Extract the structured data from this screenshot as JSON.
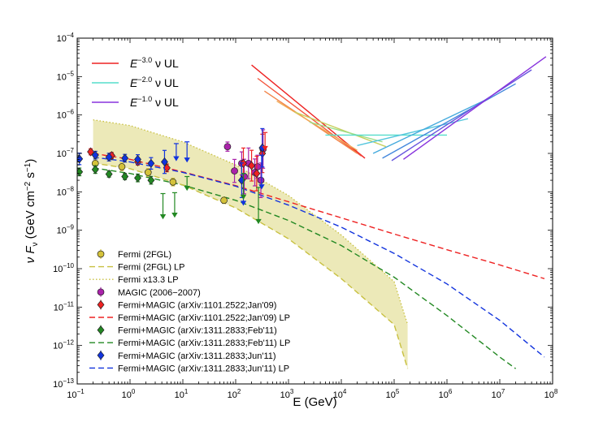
{
  "chart_data": {
    "type": "scatter",
    "xlabel_parts": [
      "E (GeV)"
    ],
    "ylabel_parts": [
      "ν F",
      "ν",
      " (GeV cm",
      "−2",
      " s",
      "−1",
      ")"
    ],
    "xlim": [
      0.1,
      100000000
    ],
    "ylim": [
      1e-13,
      0.0001
    ],
    "x_scale": "log",
    "y_scale": "log",
    "x_ticks": [
      {
        "base": "10",
        "exp": "−1",
        "value": 0.1
      },
      {
        "base": "10",
        "exp": "0",
        "value": 1
      },
      {
        "base": "10",
        "exp": "1",
        "value": 10
      },
      {
        "base": "10",
        "exp": "2",
        "value": 100
      },
      {
        "base": "10",
        "exp": "3",
        "value": 1000
      },
      {
        "base": "10",
        "exp": "4",
        "value": 10000
      },
      {
        "base": "10",
        "exp": "5",
        "value": 100000
      },
      {
        "base": "10",
        "exp": "6",
        "value": 1000000
      },
      {
        "base": "10",
        "exp": "7",
        "value": 10000000
      },
      {
        "base": "10",
        "exp": "8",
        "value": 100000000
      }
    ],
    "y_ticks": [
      {
        "base": "10",
        "exp": "−13",
        "value": 1e-13
      },
      {
        "base": "10",
        "exp": "−12",
        "value": 1e-12
      },
      {
        "base": "10",
        "exp": "−11",
        "value": 1e-11
      },
      {
        "base": "10",
        "exp": "−10",
        "value": 1e-10
      },
      {
        "base": "10",
        "exp": "−9",
        "value": 1e-09
      },
      {
        "base": "10",
        "exp": "−8",
        "value": 1e-08
      },
      {
        "base": "10",
        "exp": "−7",
        "value": 1e-07
      },
      {
        "base": "10",
        "exp": "−6",
        "value": 1e-06
      },
      {
        "base": "10",
        "exp": "−5",
        "value": 1e-05
      },
      {
        "base": "10",
        "exp": "−4",
        "value": 0.0001
      }
    ],
    "nu_legend": [
      {
        "prefix": "E",
        "exp": "−3.0",
        "suffix": " ν UL",
        "color": "#ee2222"
      },
      {
        "prefix": "E",
        "exp": "−2.0",
        "suffix": " ν UL",
        "color": "#55ddcc"
      },
      {
        "prefix": "E",
        "exp": "−1.0",
        "suffix": " ν UL",
        "color": "#8833dd"
      }
    ],
    "legend": [
      {
        "label": "Fermi (2FGL)",
        "kind": "marker",
        "shape": "circle",
        "color": "#d4c23a"
      },
      {
        "label": "Fermi (2FGL) LP",
        "kind": "line",
        "dash": "7,4",
        "color": "#c8c040"
      },
      {
        "label": "Fermi x13.3 LP",
        "kind": "line",
        "dash": "1.5,2.5",
        "color": "#c8c040"
      },
      {
        "label": "MAGIC (2006−2007)",
        "kind": "marker",
        "shape": "circle",
        "color": "#aa22aa"
      },
      {
        "label": "Fermi+MAGIC (arXiv:1101.2522;Jan'09)",
        "kind": "marker",
        "shape": "diamond",
        "color": "#ee2222"
      },
      {
        "label": "Fermi+MAGIC (arXiv:1101.2522;Jan'09) LP",
        "kind": "line",
        "dash": "7,4",
        "color": "#ee2222"
      },
      {
        "label": "Fermi+MAGIC (arXiv:1311.2833;Feb'11)",
        "kind": "marker",
        "shape": "diamond",
        "color": "#228822"
      },
      {
        "label": "Fermi+MAGIC (arXiv:1311.2833;Feb'11) LP",
        "kind": "line",
        "dash": "7,4",
        "color": "#228822"
      },
      {
        "label": "Fermi+MAGIC (arXiv:1311.2833;Jun'11)",
        "kind": "marker",
        "shape": "diamond",
        "color": "#1133dd"
      },
      {
        "label": "Fermi+MAGIC (arXiv:1311.2833;Jun'11) LP",
        "kind": "line",
        "dash": "7,4",
        "color": "#1133dd"
      }
    ],
    "lp_curves": [
      {
        "name": "Jan'09 LP",
        "color": "#ee2222",
        "dash": "7,4",
        "x": [
          0.2,
          1,
          10,
          100,
          1000,
          10000,
          100000,
          1000000,
          10000000,
          70000000
        ],
        "y": [
          1e-07,
          7e-08,
          3.3e-08,
          1.45e-08,
          5.5e-09,
          2.1e-09,
          8e-10,
          3.1e-10,
          1.25e-10,
          5.5e-11
        ]
      },
      {
        "name": "Jun'11 LP",
        "color": "#1133dd",
        "dash": "7,4",
        "x": [
          0.2,
          1,
          10,
          100,
          1000,
          10000,
          100000,
          1000000,
          10000000,
          70000000
        ],
        "y": [
          8e-08,
          6e-08,
          3.2e-08,
          1.4e-08,
          4.5e-09,
          1.2e-09,
          2.5e-10,
          4e-11,
          4.5e-12,
          5e-13
        ]
      },
      {
        "name": "Feb'11 LP",
        "color": "#228822",
        "dash": "7,4",
        "x": [
          0.2,
          1,
          10,
          100,
          1000,
          10000,
          100000,
          1000000,
          10000000,
          20000000
        ],
        "y": [
          4.2e-08,
          3e-08,
          1.5e-08,
          6e-09,
          1.8e-09,
          4e-10,
          6e-11,
          6e-12,
          5e-13,
          2.5e-13
        ]
      },
      {
        "name": "Fermi (2FGL) LP",
        "color": "#c8c040",
        "dash": "7,4",
        "x": [
          0.2,
          1,
          10,
          100,
          1000,
          10000,
          100000,
          180000
        ],
        "y": [
          5.6e-08,
          4e-08,
          1.5e-08,
          3.8e-09,
          6e-10,
          5.5e-11,
          3.5e-12,
          2.5e-13
        ]
      }
    ],
    "fermi_x13_band": {
      "name": "Fermi x13.3 LP",
      "color": "#c8c040",
      "fill": "#ece9b8",
      "x": [
        0.2,
        1,
        10,
        100,
        1000,
        10000,
        100000,
        180000
      ],
      "y_upper": [
        7.5e-07,
        5.3e-07,
        2e-07,
        5e-08,
        8e-09,
        7.5e-10,
        4.6e-11,
        3.5e-12
      ]
    },
    "nu_ul_lines": [
      {
        "color": "#ee2222",
        "x": [
          200,
          28000
        ],
        "y": [
          2e-05,
          7.5e-08
        ]
      },
      {
        "color": "#f4553d",
        "x": [
          260,
          24000
        ],
        "y": [
          9e-06,
          8.5e-08
        ]
      },
      {
        "color": "#f2854a",
        "x": [
          350,
          20000
        ],
        "y": [
          4.2e-06,
          1e-07
        ]
      },
      {
        "color": "#f0aa55",
        "x": [
          600,
          20000
        ],
        "y": [
          2.3e-06,
          1.2e-07
        ]
      },
      {
        "color": "#c8d060",
        "x": [
          1300,
          70000
        ],
        "y": [
          1.2e-06,
          1.5e-07
        ]
      },
      {
        "color": "#99dd88",
        "x": [
          2500,
          60000
        ],
        "y": [
          6.5e-07,
          2e-07
        ]
      },
      {
        "color": "#55ddcc",
        "x": [
          5000,
          1000000
        ],
        "y": [
          3e-07,
          3e-07
        ]
      },
      {
        "color": "#55c6dd",
        "x": [
          20000,
          2500000
        ],
        "y": [
          1.6e-07,
          8e-07
        ]
      },
      {
        "color": "#44aadd",
        "x": [
          40000,
          5500000
        ],
        "y": [
          1e-07,
          2.5e-06
        ]
      },
      {
        "color": "#4488dd",
        "x": [
          60000,
          20000000
        ],
        "y": [
          7.5e-08,
          6.5e-06
        ]
      },
      {
        "color": "#6655dd",
        "x": [
          90000,
          40000000
        ],
        "y": [
          6.5e-08,
          1.5e-05
        ]
      },
      {
        "color": "#8833dd",
        "x": [
          150000,
          75000000
        ],
        "y": [
          7e-08,
          3.3e-05
        ]
      }
    ],
    "series": [
      {
        "name": "Fermi (2FGL)",
        "marker": "circle",
        "color": "#d4c23a",
        "x": [
          0.22,
          0.7,
          2.2,
          6.5,
          60
        ],
        "y": [
          5.5e-08,
          4.5e-08,
          3.2e-08,
          1.8e-08,
          6e-09
        ],
        "err": [
          0.15,
          0.1,
          0.1,
          0.1,
          0.08
        ]
      },
      {
        "name": "MAGIC (2006−2007)",
        "marker": "circle",
        "color": "#aa22aa",
        "x": [
          70,
          95,
          130,
          145,
          175,
          230,
          260,
          300,
          330
        ],
        "y": [
          1.5e-07,
          3.5e-08,
          5.5e-08,
          2.5e-08,
          5.5e-08,
          3.2e-08,
          4.5e-08,
          2e-08,
          1.3e-07
        ],
        "err": [
          0.12,
          0.3,
          0.3,
          0.45,
          0.4,
          0.35,
          0.3,
          0.45,
          0.5
        ]
      },
      {
        "name": "Fermi+MAGIC (arXiv:1101.2522;Jan'09)",
        "marker": "diamond",
        "color": "#ee2222",
        "x": [
          0.18,
          0.45,
          1.4,
          5.0,
          140,
          200,
          250,
          320
        ],
        "y": [
          1.1e-07,
          8.8e-08,
          6e-08,
          4.2e-08,
          5.5e-08,
          4.8e-08,
          3e-08,
          1e-07
        ],
        "err": [
          0.08,
          0.08,
          0.08,
          0.1,
          0.4,
          0.4,
          0.45,
          0.5
        ]
      },
      {
        "name": "Fermi+MAGIC (arXiv:1311.2833;Feb'11)",
        "marker": "diamond",
        "color": "#228822",
        "x": [
          0.11,
          0.22,
          0.4,
          0.8,
          1.4,
          2.5
        ],
        "y": [
          3.3e-08,
          3.8e-08,
          2.9e-08,
          2.5e-08,
          2.3e-08,
          2e-08
        ],
        "err": [
          0.1,
          0.1,
          0.08,
          0.08,
          0.1,
          0.1
        ]
      },
      {
        "name": "Fermi+MAGIC (arXiv:1311.2833;Jun'11)",
        "marker": "diamond",
        "color": "#1133dd",
        "x": [
          0.11,
          0.22,
          0.4,
          0.8,
          1.4,
          2.5,
          4.5,
          130,
          320
        ],
        "y": [
          7.2e-08,
          9e-08,
          8e-08,
          7.5e-08,
          7e-08,
          5.5e-08,
          6e-08,
          2e-08,
          1.4e-07
        ],
        "err": [
          0.15,
          0.1,
          0.1,
          0.1,
          0.12,
          0.15,
          0.3,
          0.45,
          0.5
        ]
      }
    ],
    "upper_limits": [
      {
        "color": "#ee2222",
        "x": 360,
        "y_top": 3.5e-07,
        "y_tip": 1.2e-07
      },
      {
        "color": "#1133dd",
        "x": 7.5,
        "y_top": 1.8e-07,
        "y_tip": 6.5e-08
      },
      {
        "color": "#1133dd",
        "x": 12,
        "y_top": 2e-07,
        "y_tip": 6e-08
      },
      {
        "color": "#1133dd",
        "x": 140,
        "y_top": 3e-08,
        "y_tip": 4.5e-09
      },
      {
        "color": "#1133dd",
        "x": 310,
        "y_top": 9e-08,
        "y_tip": 1.2e-08
      },
      {
        "color": "#228822",
        "x": 4.2,
        "y_top": 9e-09,
        "y_tip": 2e-09
      },
      {
        "color": "#228822",
        "x": 7.0,
        "y_top": 9.5e-09,
        "y_tip": 2.2e-09
      },
      {
        "color": "#228822",
        "x": 12,
        "y_top": 2.5e-08,
        "y_tip": 1.1e-08
      },
      {
        "color": "#228822",
        "x": 140,
        "y_top": 3e-08,
        "y_tip": 6.5e-09
      },
      {
        "color": "#228822",
        "x": 270,
        "y_top": 1.3e-08,
        "y_tip": 1.5e-09
      }
    ]
  }
}
